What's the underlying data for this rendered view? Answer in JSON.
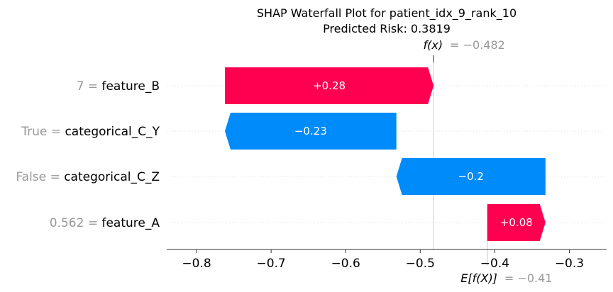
{
  "chart_data": {
    "type": "waterfall",
    "title": "SHAP Waterfall Plot for patient_idx_9_rank_10",
    "subtitle": "Predicted Risk: 0.3819",
    "fx": {
      "label": "f(x)",
      "value_text": "= −0.482",
      "value": -0.482
    },
    "efx": {
      "label": "E[f(X)]",
      "value_text": "= −0.41",
      "value": -0.41
    },
    "features": [
      {
        "value_label": "7",
        "name": "feature_B",
        "shap": 0.28,
        "bar_label": "+0.28",
        "start": -0.762,
        "end": -0.482
      },
      {
        "value_label": "True",
        "name": "categorical_C_Y",
        "shap": -0.23,
        "bar_label": "−0.23",
        "start": -0.532,
        "end": -0.762
      },
      {
        "value_label": "False",
        "name": "categorical_C_Z",
        "shap": -0.2,
        "bar_label": "−0.2",
        "start": -0.332,
        "end": -0.532
      },
      {
        "value_label": "0.562",
        "name": "feature_A",
        "shap": 0.08,
        "bar_label": "+0.08",
        "start": -0.41,
        "end": -0.332
      }
    ],
    "xlim": [
      -0.84,
      -0.25
    ],
    "xticks": [
      -0.8,
      -0.7,
      -0.6,
      -0.5,
      -0.4,
      -0.3
    ],
    "xtick_labels": [
      "−0.8",
      "−0.7",
      "−0.6",
      "−0.5",
      "−0.4",
      "−0.3"
    ],
    "colors": {
      "positive": "#ff0051",
      "negative": "#008bfb",
      "muted": "#999999"
    }
  }
}
